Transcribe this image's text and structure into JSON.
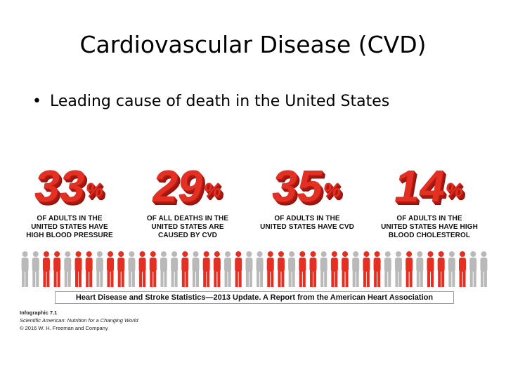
{
  "slide": {
    "title": "Cardiovascular Disease (CVD)",
    "bullet_symbol": "•",
    "bullet": "Leading cause of death in the United States"
  },
  "infographic": {
    "stats": [
      {
        "number": "33",
        "percent": "%",
        "desc1": "OF ADULTS IN THE",
        "desc2": "UNITED STATES HAVE",
        "desc3": "HIGH BLOOD PRESSURE"
      },
      {
        "number": "29",
        "percent": "%",
        "desc1": "OF ALL DEATHS IN THE",
        "desc2": "UNITED STATES ARE",
        "desc3": "CAUSED BY CVD"
      },
      {
        "number": "35",
        "percent": "%",
        "desc1": "OF ADULTS IN THE",
        "desc2": "UNITED STATES HAVE CVD",
        "desc3": ""
      },
      {
        "number": "14",
        "percent": "%",
        "desc1": "OF ADULTS IN THE",
        "desc2": "UNITED STATES HAVE HIGH",
        "desc3": "BLOOD CHOLESTEROL"
      }
    ],
    "source": "Heart Disease and Stroke Statistics—2013 Update. A Report from the American Heart Association",
    "credit_line1": "Infographic 7.1",
    "credit_line2": "Scientific American: Nutrition for a Changing World",
    "credit_line3": "© 2016 W. H. Freeman and Company",
    "colors": {
      "red": "#e42f23",
      "gray": "#b9b9b9"
    }
  }
}
